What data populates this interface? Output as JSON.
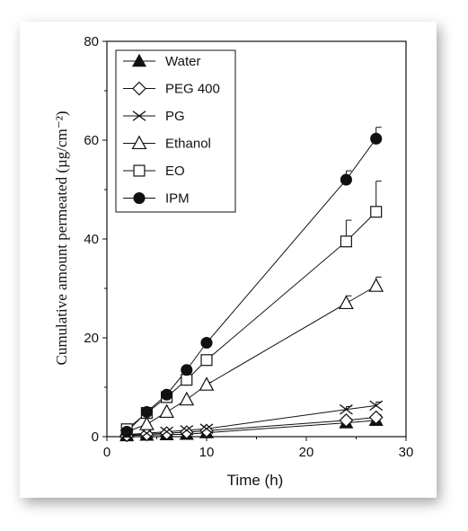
{
  "chart_data": {
    "type": "scatter",
    "xlabel": "Time (h)",
    "ylabel": "Cumulative amount permeated (µg/cm⁻²)",
    "xlim": [
      0,
      30
    ],
    "ylim": [
      0,
      80
    ],
    "x_ticks": [
      "0",
      "10",
      "20",
      "30"
    ],
    "y_ticks": [
      "0",
      "20",
      "40",
      "60",
      "80"
    ],
    "grid": false,
    "legend_position": "top-left",
    "series": [
      {
        "name": "Water",
        "marker": "triangle-filled",
        "x": [
          2,
          4,
          6,
          8,
          10,
          24,
          27
        ],
        "y": [
          0.2,
          0.3,
          0.4,
          0.5,
          0.8,
          2.8,
          3.3
        ],
        "err": [
          0,
          0,
          0,
          0,
          0,
          0.3,
          0.3
        ]
      },
      {
        "name": "PEG 400",
        "marker": "diamond-open",
        "x": [
          2,
          4,
          6,
          8,
          10,
          24,
          27
        ],
        "y": [
          0.3,
          0.5,
          0.7,
          0.9,
          1.2,
          3.3,
          3.9
        ],
        "err": [
          0,
          0,
          0,
          0,
          0,
          0.4,
          0.5
        ]
      },
      {
        "name": "PG",
        "marker": "x",
        "x": [
          2,
          4,
          6,
          8,
          10,
          24,
          27
        ],
        "y": [
          0.4,
          0.7,
          1.0,
          1.3,
          1.6,
          5.5,
          6.3
        ],
        "err": [
          0,
          0,
          0,
          0,
          0,
          0.6,
          0.7
        ]
      },
      {
        "name": "Ethanol",
        "marker": "triangle-open",
        "x": [
          2,
          4,
          6,
          8,
          10,
          24,
          27
        ],
        "y": [
          1.0,
          2.5,
          5.0,
          7.5,
          10.5,
          27.0,
          30.5
        ],
        "err": [
          0,
          0,
          0,
          0,
          0.5,
          1.5,
          1.8
        ]
      },
      {
        "name": "EO",
        "marker": "square-open",
        "x": [
          2,
          4,
          6,
          8,
          10,
          24,
          27
        ],
        "y": [
          1.5,
          4.8,
          8.0,
          11.5,
          15.5,
          39.5,
          45.5
        ],
        "err": [
          0,
          0,
          0,
          0,
          0.7,
          4.3,
          6.2
        ]
      },
      {
        "name": "IPM",
        "marker": "circle-filled",
        "x": [
          2,
          4,
          6,
          8,
          10,
          24,
          27
        ],
        "y": [
          1.0,
          5.0,
          8.5,
          13.5,
          19.0,
          52.0,
          60.3
        ],
        "err": [
          0,
          0,
          0,
          0,
          0,
          1.8,
          2.3
        ]
      }
    ]
  }
}
